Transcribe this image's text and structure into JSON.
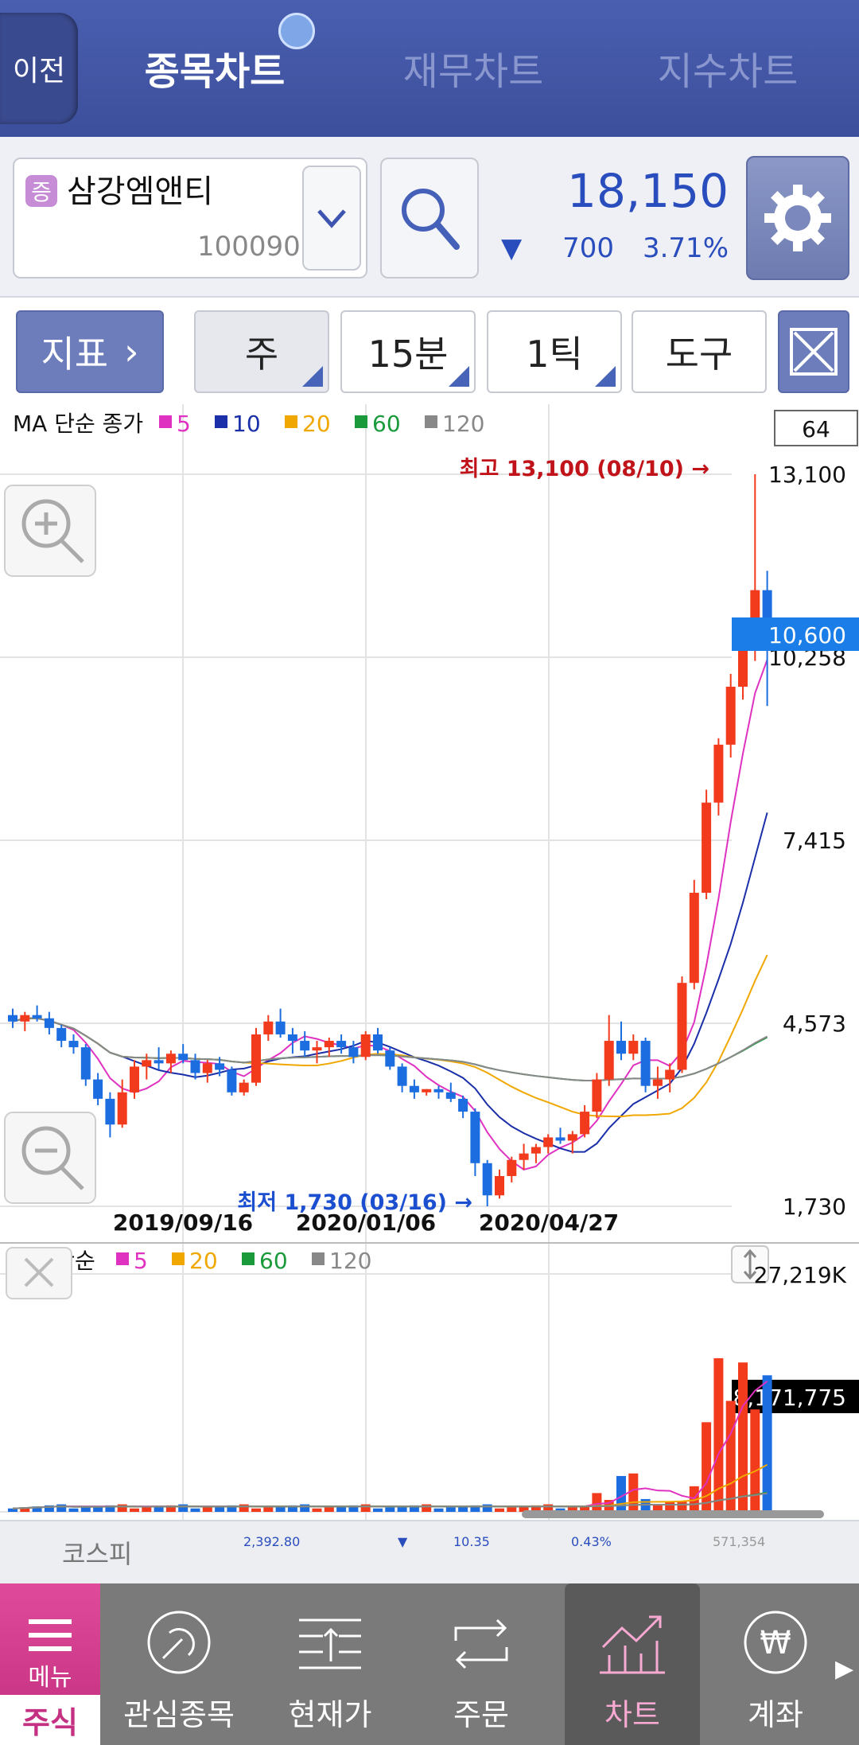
{
  "header": {
    "back_label": "이전",
    "tabs": [
      "종목차트",
      "재무차트",
      "지수차트"
    ],
    "active_tab": 0
  },
  "stock": {
    "tag": "증",
    "name": "삼강엠앤티",
    "code": "100090",
    "price": "18,150",
    "change": "700",
    "change_pct": "3.71%",
    "direction": "down"
  },
  "toolbar": {
    "indicator": "지표",
    "period": "주",
    "minute": "15분",
    "tick": "1틱",
    "tool": "도구"
  },
  "chart": {
    "legend_label": "MA 단순 종가",
    "ma_periods": [
      "5",
      "10",
      "20",
      "60",
      "120"
    ],
    "ma_colors": [
      "#e032c0",
      "#1a2fa8",
      "#f0a800",
      "#1a9a3a",
      "#888888"
    ],
    "count_box": "64",
    "y_ticks": [
      "13,100",
      "10,258",
      "7,415",
      "4,573",
      "1,730"
    ],
    "current_price_label": "10,600",
    "high_annotation": "최고 13,100 (08/10) →",
    "low_annotation": "최저 1,730 (03/16) →",
    "x_ticks": [
      "2019/09/16",
      "2020/01/06",
      "2020/04/27"
    ],
    "up_color": "#f23a1c",
    "down_color": "#1c6ee0"
  },
  "volume": {
    "legend_label": "MA 단순",
    "ma_periods": [
      "5",
      "20",
      "60",
      "120"
    ],
    "ma_colors": [
      "#e032c0",
      "#f0a800",
      "#1a9a3a",
      "#888888"
    ],
    "y_max_label": "27,219K",
    "current_label": "8,171,775"
  },
  "index_bar": {
    "name": "코스피",
    "value": "2,392.80",
    "arrow": "▼",
    "change": "10.35",
    "pct": "0.43%",
    "volume": "571,354"
  },
  "bottom_nav": {
    "menu_label": "메뉴",
    "menu_section": "주식",
    "items": [
      "관심종목",
      "현재가",
      "주문",
      "차트",
      "계좌"
    ],
    "active": "차트"
  }
}
